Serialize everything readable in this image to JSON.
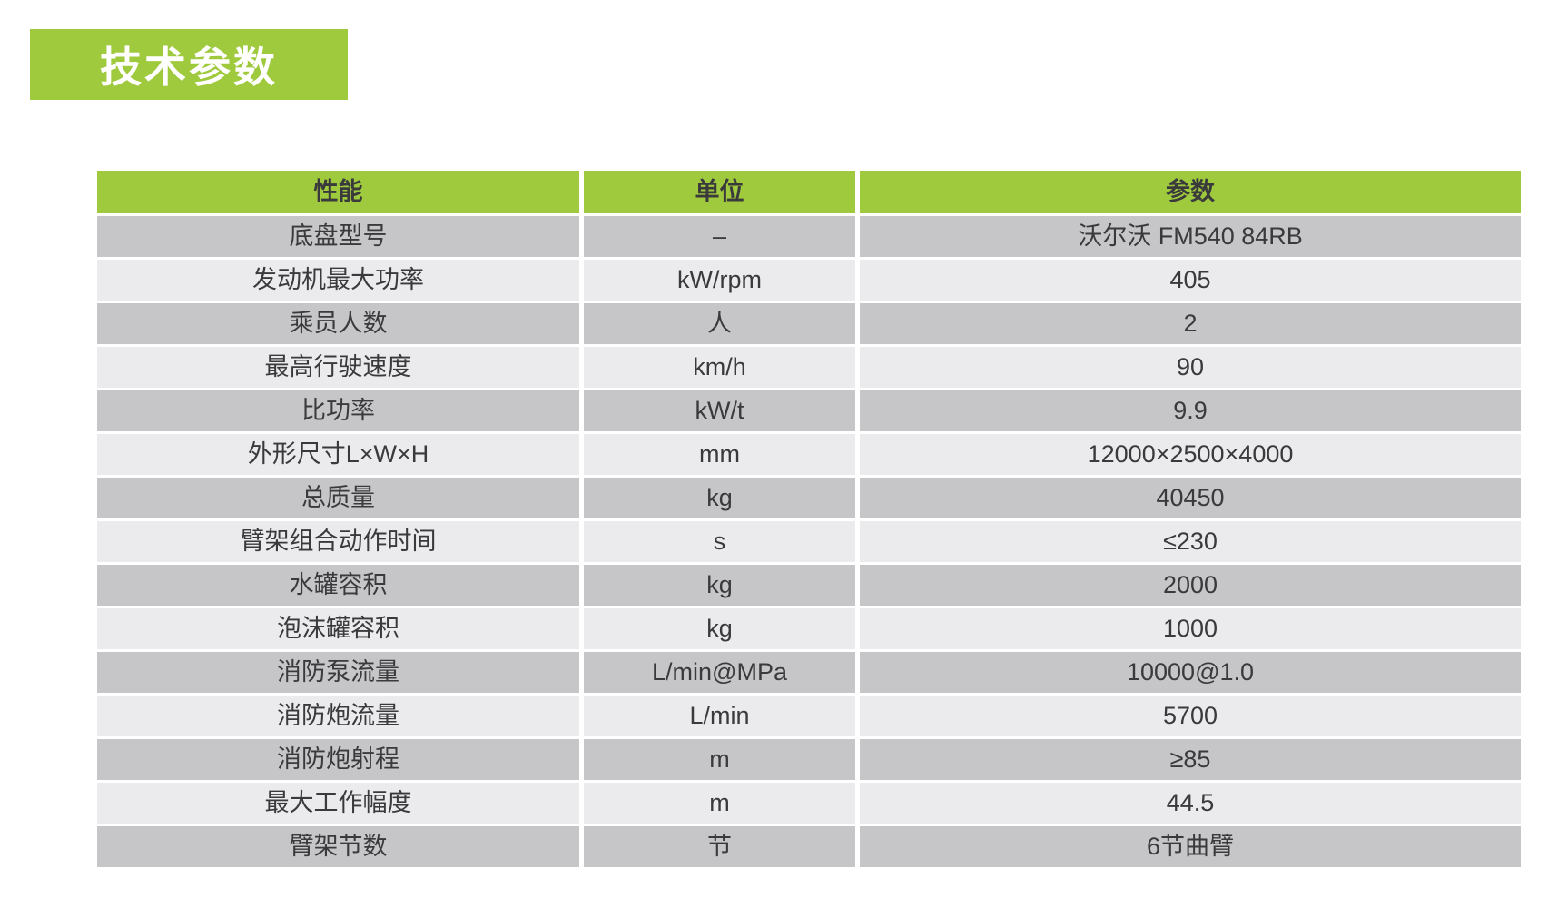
{
  "page": {
    "background": "#ffffff"
  },
  "title": {
    "text": "技术参数",
    "background": "#9fca3d",
    "text_color": "#ffffff"
  },
  "table": {
    "header": {
      "property": "性能",
      "unit": "单位",
      "value": "参数"
    },
    "header_background": "#9fca3d",
    "row_color_light": "#ebebed",
    "row_color_dark": "#c6c6c8",
    "text_color": "#3a3a3c",
    "rows": [
      {
        "property": "底盘型号",
        "unit": "–",
        "value": "沃尔沃 FM540 84RB"
      },
      {
        "property": "发动机最大功率",
        "unit": "kW/rpm",
        "value": "405"
      },
      {
        "property": "乘员人数",
        "unit": "人",
        "value": "2"
      },
      {
        "property": "最高行驶速度",
        "unit": "km/h",
        "value": "90"
      },
      {
        "property": "比功率",
        "unit": "kW/t",
        "value": "9.9"
      },
      {
        "property": "外形尺寸L×W×H",
        "unit": "mm",
        "value": "12000×2500×4000"
      },
      {
        "property": "总质量",
        "unit": "kg",
        "value": "40450"
      },
      {
        "property": "臂架组合动作时间",
        "unit": "s",
        "value": "≤230"
      },
      {
        "property": "水罐容积",
        "unit": "kg",
        "value": "2000"
      },
      {
        "property": "泡沫罐容积",
        "unit": "kg",
        "value": "1000"
      },
      {
        "property": "消防泵流量",
        "unit": "L/min@MPa",
        "value": "10000@1.0"
      },
      {
        "property": "消防炮流量",
        "unit": "L/min",
        "value": "5700"
      },
      {
        "property": "消防炮射程",
        "unit": "m",
        "value": "≥85"
      },
      {
        "property": "最大工作幅度",
        "unit": "m",
        "value": "44.5"
      },
      {
        "property": "臂架节数",
        "unit": "节",
        "value": "6节曲臂"
      }
    ]
  }
}
